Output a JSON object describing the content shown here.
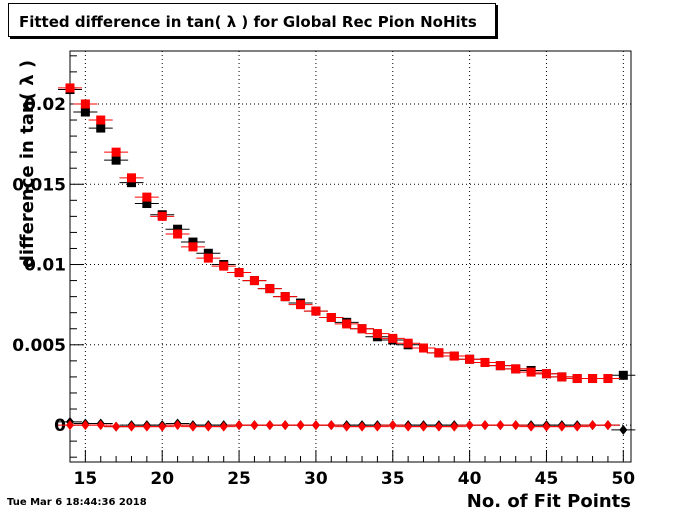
{
  "title": "Fitted difference in tan( λ ) for Global Rec Pion NoHits",
  "timestamp": "Tue Mar  6 18:44:36 2018",
  "chart_data": {
    "type": "scatter",
    "title": "Fitted difference in tan( λ ) for Global Rec Pion NoHits",
    "xlabel": "No. of Fit Points",
    "ylabel": "difference in tan( λ )",
    "xlim": [
      14,
      50.5
    ],
    "ylim": [
      -0.0023,
      0.0233
    ],
    "grid": true,
    "xticks": [
      15,
      20,
      25,
      30,
      35,
      40,
      45,
      50
    ],
    "yticks": [
      0,
      0.005,
      0.01,
      0.015,
      0.02
    ],
    "ytick_labels": [
      "0",
      "0.005",
      "0.01",
      "0.015",
      "0.02"
    ],
    "x": [
      14,
      15,
      16,
      17,
      18,
      19,
      20,
      21,
      22,
      23,
      24,
      25,
      26,
      27,
      28,
      29,
      30,
      31,
      32,
      33,
      34,
      35,
      36,
      37,
      38,
      39,
      40,
      41,
      42,
      43,
      44,
      45,
      46,
      47,
      48,
      49,
      50
    ],
    "series": [
      {
        "marker": "square",
        "color": "#000000",
        "values": [
          0.0209,
          0.0195,
          0.0185,
          0.0165,
          0.0151,
          0.0138,
          0.0131,
          0.0122,
          0.0114,
          0.0107,
          0.01,
          0.0095,
          0.009,
          0.0085,
          0.008,
          0.0076,
          0.0071,
          0.0067,
          0.0064,
          0.006,
          0.0055,
          0.0053,
          0.005,
          0.0048,
          0.0045,
          0.0043,
          0.0041,
          0.0039,
          0.0037,
          0.0035,
          0.0034,
          0.0032,
          0.003,
          0.0029,
          0.0029,
          0.0029,
          0.0031
        ]
      },
      {
        "marker": "square",
        "color": "#ff0000",
        "values": [
          0.021,
          0.02,
          0.019,
          0.017,
          0.0154,
          0.0142,
          0.013,
          0.0119,
          0.0111,
          0.0104,
          0.0099,
          0.0095,
          0.009,
          0.0085,
          0.008,
          0.0075,
          0.0071,
          0.0067,
          0.0063,
          0.006,
          0.0057,
          0.0054,
          0.0051,
          0.0048,
          0.0045,
          0.0043,
          0.0041,
          0.0039,
          0.0037,
          0.0035,
          0.0033,
          0.0032,
          0.003,
          0.0029,
          0.0029,
          0.0029,
          null
        ]
      },
      {
        "marker": "diamond",
        "color": "#000000",
        "values": [
          0.0002,
          0.0001,
          0.0001,
          -0.0001,
          0.0,
          0.0,
          0.0,
          0.0001,
          0.0,
          0.0,
          0.0,
          0.0,
          0.0,
          0.0,
          0.0,
          0.0,
          0.0,
          0.0,
          0.0,
          0.0,
          0.0,
          0.0,
          0.0,
          0.0,
          0.0,
          0.0,
          0.0,
          0.0,
          0.0,
          0.0,
          0.0,
          0.0,
          0.0,
          0.0,
          0.0,
          0.0,
          -0.0003
        ]
      },
      {
        "marker": "diamond",
        "color": "#ff0000",
        "values": [
          0.0,
          0.0,
          0.0,
          -0.0001,
          -0.0001,
          -0.0001,
          -0.0001,
          0.0,
          -0.0001,
          -0.0001,
          -0.0001,
          0.0,
          0.0,
          0.0,
          0.0,
          0.0,
          0.0,
          0.0,
          -0.0001,
          -0.0001,
          -0.0001,
          0.0,
          -0.0001,
          -0.0001,
          -0.0001,
          -0.0001,
          0.0,
          0.0,
          0.0,
          0.0,
          -0.0001,
          -0.0001,
          -0.0001,
          -0.0001,
          0.0,
          0.0,
          null
        ]
      }
    ]
  }
}
